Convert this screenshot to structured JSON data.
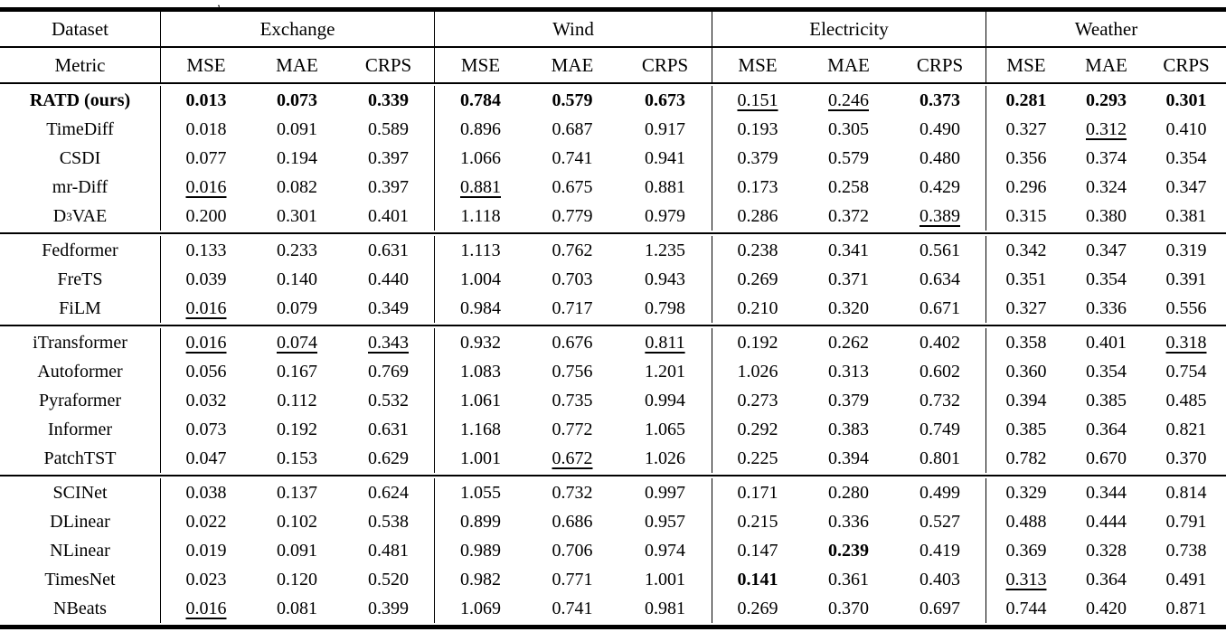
{
  "caption_fragment": ",",
  "table": {
    "header": {
      "dataset_label": "Dataset",
      "metric_label": "Metric",
      "datasets": [
        "Exchange",
        "Wind",
        "Electricity",
        "Weather"
      ],
      "metrics": [
        "MSE",
        "MAE",
        "CRPS"
      ]
    },
    "groups": [
      {
        "rows": [
          {
            "model": "RATD (ours)",
            "bold_model": true,
            "values": [
              "0.013",
              "0.073",
              "0.339",
              "0.784",
              "0.579",
              "0.673",
              "0.151",
              "0.246",
              "0.373",
              "0.281",
              "0.293",
              "0.301"
            ],
            "styles": [
              "b",
              "b",
              "b",
              "b",
              "b",
              "b",
              "u",
              "u",
              "b",
              "b",
              "b",
              "b"
            ]
          },
          {
            "model": "TimeDiff",
            "values": [
              "0.018",
              "0.091",
              "0.589",
              "0.896",
              "0.687",
              "0.917",
              "0.193",
              "0.305",
              "0.490",
              "0.327",
              "0.312",
              "0.410"
            ],
            "styles": [
              "",
              "",
              "",
              "",
              "",
              "",
              "",
              "",
              "",
              "",
              "u",
              ""
            ]
          },
          {
            "model": "CSDI",
            "values": [
              "0.077",
              "0.194",
              "0.397",
              "1.066",
              "0.741",
              "0.941",
              "0.379",
              "0.579",
              "0.480",
              "0.356",
              "0.374",
              "0.354"
            ],
            "styles": [
              "",
              "",
              "",
              "",
              "",
              "",
              "",
              "",
              "",
              "",
              "",
              ""
            ]
          },
          {
            "model": "mr-Diff",
            "values": [
              "0.016",
              "0.082",
              "0.397",
              "0.881",
              "0.675",
              "0.881",
              "0.173",
              "0.258",
              "0.429",
              "0.296",
              "0.324",
              "0.347"
            ],
            "styles": [
              "u",
              "",
              "",
              "u",
              "",
              "",
              "",
              "",
              "",
              "",
              "",
              ""
            ]
          },
          {
            "model": "D3VAE",
            "model_parts": {
              "pre": "D",
              "sub": "3",
              "post": "VAE"
            },
            "values": [
              "0.200",
              "0.301",
              "0.401",
              "1.118",
              "0.779",
              "0.979",
              "0.286",
              "0.372",
              "0.389",
              "0.315",
              "0.380",
              "0.381"
            ],
            "styles": [
              "",
              "",
              "",
              "",
              "",
              "",
              "",
              "",
              "u",
              "",
              "",
              ""
            ]
          }
        ]
      },
      {
        "rows": [
          {
            "model": "Fedformer",
            "values": [
              "0.133",
              "0.233",
              "0.631",
              "1.113",
              "0.762",
              "1.235",
              "0.238",
              "0.341",
              "0.561",
              "0.342",
              "0.347",
              "0.319"
            ],
            "styles": [
              "",
              "",
              "",
              "",
              "",
              "",
              "",
              "",
              "",
              "",
              "",
              ""
            ]
          },
          {
            "model": "FreTS",
            "values": [
              "0.039",
              "0.140",
              "0.440",
              "1.004",
              "0.703",
              "0.943",
              "0.269",
              "0.371",
              "0.634",
              "0.351",
              "0.354",
              "0.391"
            ],
            "styles": [
              "",
              "",
              "",
              "",
              "",
              "",
              "",
              "",
              "",
              "",
              "",
              ""
            ]
          },
          {
            "model": "FiLM",
            "values": [
              "0.016",
              "0.079",
              "0.349",
              "0.984",
              "0.717",
              "0.798",
              "0.210",
              "0.320",
              "0.671",
              "0.327",
              "0.336",
              "0.556"
            ],
            "styles": [
              "u",
              "",
              "",
              "",
              "",
              "",
              "",
              "",
              "",
              "",
              "",
              ""
            ]
          }
        ]
      },
      {
        "rows": [
          {
            "model": "iTransformer",
            "values": [
              "0.016",
              "0.074",
              "0.343",
              "0.932",
              "0.676",
              "0.811",
              "0.192",
              "0.262",
              "0.402",
              "0.358",
              "0.401",
              "0.318"
            ],
            "styles": [
              "u",
              "u",
              "u",
              "",
              "",
              "u",
              "",
              "",
              "",
              "",
              "",
              "u"
            ]
          },
          {
            "model": "Autoformer",
            "values": [
              "0.056",
              "0.167",
              "0.769",
              "1.083",
              "0.756",
              "1.201",
              "1.026",
              "0.313",
              "0.602",
              "0.360",
              "0.354",
              "0.754"
            ],
            "styles": [
              "",
              "",
              "",
              "",
              "",
              "",
              "",
              "",
              "",
              "",
              "",
              ""
            ]
          },
          {
            "model": "Pyraformer",
            "values": [
              "0.032",
              "0.112",
              "0.532",
              "1.061",
              "0.735",
              "0.994",
              "0.273",
              "0.379",
              "0.732",
              "0.394",
              "0.385",
              "0.485"
            ],
            "styles": [
              "",
              "",
              "",
              "",
              "",
              "",
              "",
              "",
              "",
              "",
              "",
              ""
            ]
          },
          {
            "model": "Informer",
            "values": [
              "0.073",
              "0.192",
              "0.631",
              "1.168",
              "0.772",
              "1.065",
              "0.292",
              "0.383",
              "0.749",
              "0.385",
              "0.364",
              "0.821"
            ],
            "styles": [
              "",
              "",
              "",
              "",
              "",
              "",
              "",
              "",
              "",
              "",
              "",
              ""
            ]
          },
          {
            "model": "PatchTST",
            "values": [
              "0.047",
              "0.153",
              "0.629",
              "1.001",
              "0.672",
              "1.026",
              "0.225",
              "0.394",
              "0.801",
              "0.782",
              "0.670",
              "0.370"
            ],
            "styles": [
              "",
              "",
              "",
              "",
              "u",
              "",
              "",
              "",
              "",
              "",
              "",
              ""
            ]
          }
        ]
      },
      {
        "rows": [
          {
            "model": "SCINet",
            "values": [
              "0.038",
              "0.137",
              "0.624",
              "1.055",
              "0.732",
              "0.997",
              "0.171",
              "0.280",
              "0.499",
              "0.329",
              "0.344",
              "0.814"
            ],
            "styles": [
              "",
              "",
              "",
              "",
              "",
              "",
              "",
              "",
              "",
              "",
              "",
              ""
            ]
          },
          {
            "model": "DLinear",
            "values": [
              "0.022",
              "0.102",
              "0.538",
              "0.899",
              "0.686",
              "0.957",
              "0.215",
              "0.336",
              "0.527",
              "0.488",
              "0.444",
              "0.791"
            ],
            "styles": [
              "",
              "",
              "",
              "",
              "",
              "",
              "",
              "",
              "",
              "",
              "",
              ""
            ]
          },
          {
            "model": "NLinear",
            "values": [
              "0.019",
              "0.091",
              "0.481",
              "0.989",
              "0.706",
              "0.974",
              "0.147",
              "0.239",
              "0.419",
              "0.369",
              "0.328",
              "0.738"
            ],
            "styles": [
              "",
              "",
              "",
              "",
              "",
              "",
              "",
              "b",
              "",
              "",
              "",
              ""
            ]
          },
          {
            "model": "TimesNet",
            "values": [
              "0.023",
              "0.120",
              "0.520",
              "0.982",
              "0.771",
              "1.001",
              "0.141",
              "0.361",
              "0.403",
              "0.313",
              "0.364",
              "0.491"
            ],
            "styles": [
              "",
              "",
              "",
              "",
              "",
              "",
              "b",
              "",
              "",
              "u",
              "",
              ""
            ]
          },
          {
            "model": "NBeats",
            "values": [
              "0.016",
              "0.081",
              "0.399",
              "1.069",
              "0.741",
              "0.981",
              "0.269",
              "0.370",
              "0.697",
              "0.744",
              "0.420",
              "0.871"
            ],
            "styles": [
              "u",
              "",
              "",
              "",
              "",
              "",
              "",
              "",
              "",
              "",
              "",
              ""
            ]
          }
        ]
      }
    ]
  }
}
